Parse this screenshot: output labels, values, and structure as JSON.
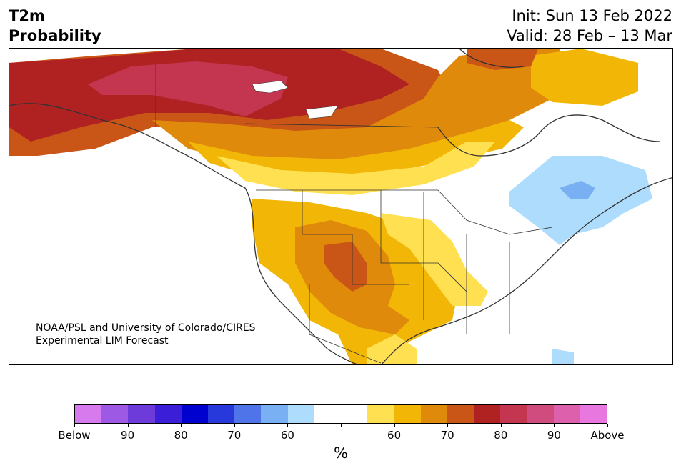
{
  "header": {
    "title_line1": "T2m",
    "title_line2": "Probability",
    "init_text": "Init: Sun 13 Feb 2022",
    "valid_text": "Valid: 28 Feb – 13 Mar"
  },
  "map": {
    "credit_line1": "NOAA/PSL and University of Colorado/CIRES",
    "credit_line2": "Experimental LIM Forecast"
  },
  "colorbar": {
    "colors": [
      "#d67aee",
      "#9d59e4",
      "#6c3bd9",
      "#3b1ed8",
      "#0000cf",
      "#2839dc",
      "#4f74e9",
      "#79b0f4",
      "#addcfc",
      "#ffffff",
      "#ffffff",
      "#ffe050",
      "#f2b706",
      "#e08a0c",
      "#c95516",
      "#b02222",
      "#c4354f",
      "#d14c7e",
      "#dc60ab",
      "#e878df"
    ],
    "tick_labels": [
      "Below",
      "90",
      "80",
      "70",
      "60",
      "",
      "60",
      "70",
      "80",
      "90",
      "Above"
    ],
    "units": "%"
  }
}
